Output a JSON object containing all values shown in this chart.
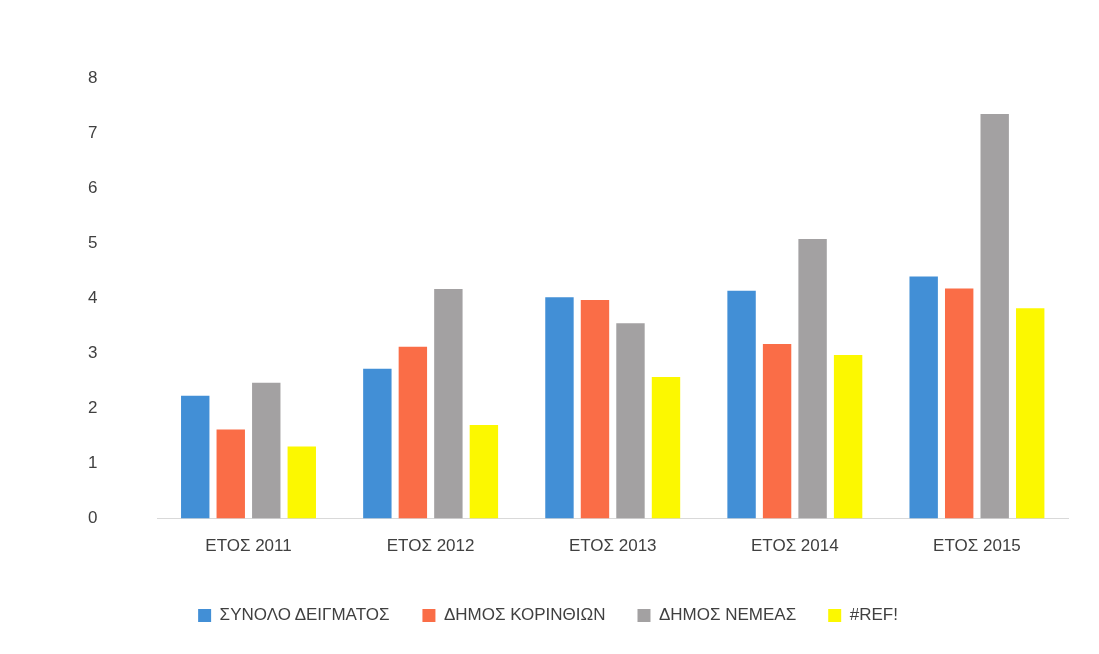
{
  "chart_data": {
    "type": "bar",
    "categories": [
      "ΕΤΟΣ 2011",
      "ΕΤΟΣ 2012",
      "ΕΤΟΣ 2013",
      "ΕΤΟΣ 2014",
      "ΕΤΟΣ 2015"
    ],
    "series": [
      {
        "name": "ΣΥΝΟΛΟ ΔΕΙΓΜΑΤΟΣ",
        "color": "#428fd6",
        "values": [
          2.23,
          2.72,
          4.02,
          4.14,
          4.4
        ]
      },
      {
        "name": "ΔΗΜΟΣ ΚΟΡΙΝΘΙΩΝ",
        "color": "#fa6d47",
        "values": [
          1.62,
          3.12,
          3.97,
          3.17,
          4.18
        ]
      },
      {
        "name": "ΔΗΜΟΣ ΝΕΜΕΑΣ",
        "color": "#a3a1a2",
        "values": [
          2.47,
          4.17,
          3.55,
          5.08,
          7.35
        ]
      },
      {
        "name": "#REF!",
        "color": "#fcf800",
        "values": [
          1.31,
          1.7,
          2.57,
          2.97,
          3.82
        ]
      }
    ],
    "ylim": [
      0,
      8
    ],
    "yticks": [
      0,
      1,
      2,
      3,
      4,
      5,
      6,
      7,
      8
    ],
    "grid": false,
    "legend": "bottom"
  }
}
